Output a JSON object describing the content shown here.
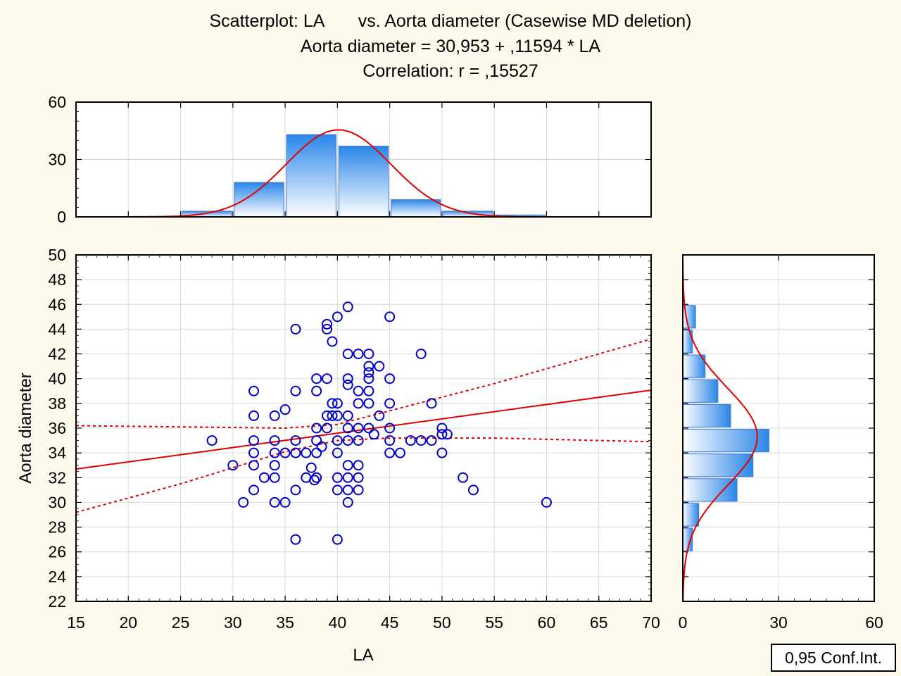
{
  "title_lines": [
    "Scatterplot: LA       vs. Aorta diameter (Casewise MD deletion)",
    "Aorta diameter = 30,953 + ,11594 * LA",
    "Correlation: r = ,15527"
  ],
  "legend_label": "0,95 Conf.Int.",
  "colors": {
    "points": "#0000cc",
    "fit": "#e00000",
    "bar_dark": "#2a86e8",
    "bar_light": "#ffffff",
    "bar_border": "#3d78d8",
    "background": "#fdf9ec"
  },
  "chart_data": [
    {
      "type": "scatter",
      "xlabel": "LA",
      "ylabel": "Aorta diameter",
      "xlim": [
        15,
        70
      ],
      "ylim": [
        22,
        50
      ],
      "xticks": [
        15,
        20,
        25,
        30,
        35,
        40,
        45,
        50,
        55,
        60,
        65,
        70
      ],
      "yticks": [
        22,
        24,
        26,
        28,
        30,
        32,
        34,
        36,
        38,
        40,
        42,
        44,
        46,
        48,
        50
      ],
      "grid": true,
      "regression": {
        "intercept": 30.953,
        "slope": 0.11594
      },
      "confidence_band": {
        "level": 0.95,
        "upper": [
          [
            15,
            36.2
          ],
          [
            25,
            36.1
          ],
          [
            35,
            36.0
          ],
          [
            40,
            36.3
          ],
          [
            45,
            37.4
          ],
          [
            55,
            39.6
          ],
          [
            70,
            43.2
          ]
        ],
        "lower": [
          [
            15,
            29.2
          ],
          [
            25,
            31.5
          ],
          [
            35,
            34.1
          ],
          [
            40,
            35.0
          ],
          [
            45,
            35.2
          ],
          [
            55,
            35.2
          ],
          [
            70,
            34.9
          ]
        ]
      },
      "points": [
        [
          28,
          35
        ],
        [
          30,
          33
        ],
        [
          31,
          30
        ],
        [
          32,
          39
        ],
        [
          32,
          37
        ],
        [
          32,
          35
        ],
        [
          32,
          34
        ],
        [
          32,
          33
        ],
        [
          32,
          31
        ],
        [
          33,
          32
        ],
        [
          34,
          37
        ],
        [
          34,
          35
        ],
        [
          34,
          34
        ],
        [
          34,
          33
        ],
        [
          34,
          32
        ],
        [
          34,
          30
        ],
        [
          35,
          37.5
        ],
        [
          35,
          34
        ],
        [
          35,
          30
        ],
        [
          36,
          44
        ],
        [
          36,
          39
        ],
        [
          36,
          35
        ],
        [
          36,
          34
        ],
        [
          36,
          31
        ],
        [
          36,
          27
        ],
        [
          37,
          34
        ],
        [
          37,
          32
        ],
        [
          37.5,
          32.8
        ],
        [
          37.8,
          31.8
        ],
        [
          38,
          40
        ],
        [
          38,
          39
        ],
        [
          38,
          36
        ],
        [
          38,
          35
        ],
        [
          38,
          34
        ],
        [
          38,
          32
        ],
        [
          38.5,
          34.5
        ],
        [
          39,
          44.4
        ],
        [
          39,
          44
        ],
        [
          39,
          40
        ],
        [
          39,
          37
        ],
        [
          39,
          36
        ],
        [
          39.5,
          43
        ],
        [
          39.5,
          38
        ],
        [
          39.5,
          37
        ],
        [
          40,
          45
        ],
        [
          40,
          38
        ],
        [
          40,
          37
        ],
        [
          40,
          35
        ],
        [
          40,
          34
        ],
        [
          40,
          32
        ],
        [
          40,
          31
        ],
        [
          40,
          27
        ],
        [
          41,
          45.8
        ],
        [
          41,
          42
        ],
        [
          41,
          40
        ],
        [
          41,
          39.5
        ],
        [
          41,
          37
        ],
        [
          41,
          36
        ],
        [
          41,
          35
        ],
        [
          41,
          33
        ],
        [
          41,
          32
        ],
        [
          41,
          31
        ],
        [
          41,
          30
        ],
        [
          42,
          42
        ],
        [
          42,
          39
        ],
        [
          42,
          38
        ],
        [
          42,
          36
        ],
        [
          42,
          35
        ],
        [
          42,
          33
        ],
        [
          42,
          32
        ],
        [
          42,
          31
        ],
        [
          43,
          42
        ],
        [
          43,
          41
        ],
        [
          43,
          40.5
        ],
        [
          43,
          40
        ],
        [
          43,
          39
        ],
        [
          43,
          38
        ],
        [
          43,
          36
        ],
        [
          43.5,
          35.5
        ],
        [
          44,
          41
        ],
        [
          44,
          37
        ],
        [
          45,
          45
        ],
        [
          45,
          40
        ],
        [
          45,
          38
        ],
        [
          45,
          36
        ],
        [
          45,
          35
        ],
        [
          45,
          34
        ],
        [
          46,
          34
        ],
        [
          47,
          35
        ],
        [
          48,
          42
        ],
        [
          48,
          35
        ],
        [
          49,
          38
        ],
        [
          49,
          35
        ],
        [
          50,
          36
        ],
        [
          50,
          35.5
        ],
        [
          50,
          34
        ],
        [
          50.5,
          35.5
        ],
        [
          52,
          32
        ],
        [
          53,
          31
        ],
        [
          60,
          30
        ]
      ]
    },
    {
      "type": "bar",
      "title": "",
      "variable": "LA",
      "bins": [
        [
          25,
          30
        ],
        [
          30,
          35
        ],
        [
          35,
          40
        ],
        [
          40,
          45
        ],
        [
          45,
          50
        ],
        [
          50,
          55
        ],
        [
          55,
          60
        ]
      ],
      "values": [
        3,
        18,
        43,
        37,
        9,
        3,
        1
      ],
      "ylim": [
        0,
        60
      ],
      "yticks": [
        0,
        30,
        60
      ],
      "normal_curve": {
        "mean": 40.1,
        "sd": 5.0
      }
    },
    {
      "type": "bar",
      "orientation": "horizontal",
      "variable": "Aorta diameter",
      "bins": [
        [
          26,
          28
        ],
        [
          28,
          30
        ],
        [
          30,
          32
        ],
        [
          32,
          34
        ],
        [
          34,
          36
        ],
        [
          36,
          38
        ],
        [
          38,
          40
        ],
        [
          40,
          42
        ],
        [
          42,
          44
        ],
        [
          44,
          46
        ]
      ],
      "values": [
        3,
        5,
        17,
        22,
        27,
        15,
        11,
        7,
        3,
        4
      ],
      "xlim": [
        0,
        60
      ],
      "xticks": [
        0,
        30,
        60
      ],
      "normal_curve": {
        "mean": 35.3,
        "sd": 3.9
      }
    }
  ]
}
